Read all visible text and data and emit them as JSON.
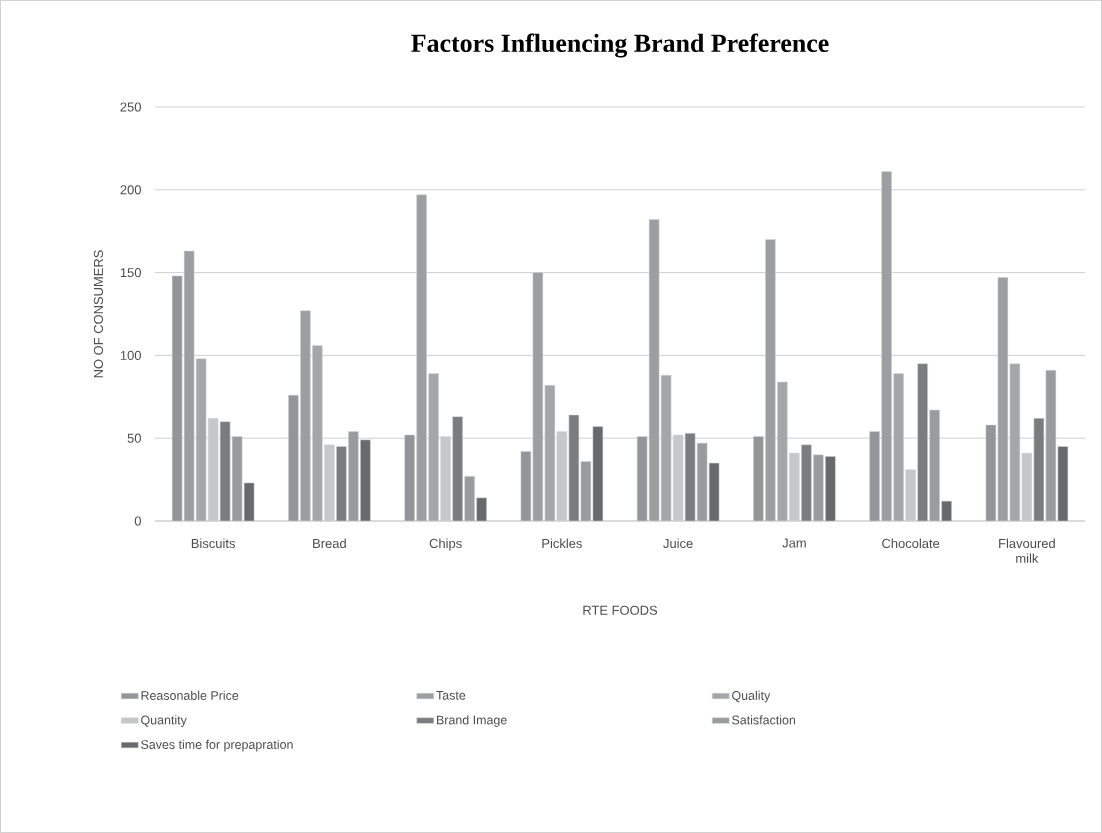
{
  "chart_data": {
    "type": "bar",
    "title": "Factors Influencing Brand Preference",
    "xlabel": "RTE FOODS",
    "ylabel": "NO OF CONSUMERS",
    "categories": [
      "Biscuits",
      "Bread",
      "Chips",
      "Pickles",
      "Juice",
      "Jam",
      "Chocolate",
      "Flavoured milk"
    ],
    "series": [
      {
        "name": "Reasonable Price",
        "color": "#939598",
        "values": [
          148,
          76,
          52,
          42,
          51,
          51,
          54,
          58
        ]
      },
      {
        "name": "Taste",
        "color": "#9d9ea0",
        "values": [
          163,
          127,
          197,
          150,
          182,
          170,
          211,
          147
        ]
      },
      {
        "name": "Quality",
        "color": "#a5a6a8",
        "values": [
          98,
          106,
          89,
          82,
          88,
          84,
          89,
          95
        ]
      },
      {
        "name": "Quantity",
        "color": "#c6c7c8",
        "values": [
          62,
          46,
          51,
          54,
          52,
          41,
          31,
          41
        ]
      },
      {
        "name": "Brand Image",
        "color": "#7b7c7e",
        "values": [
          60,
          45,
          63,
          64,
          53,
          46,
          95,
          62
        ]
      },
      {
        "name": "Satisfaction",
        "color": "#999b9d",
        "values": [
          51,
          54,
          27,
          36,
          47,
          40,
          67,
          91
        ]
      },
      {
        "name": "Saves time for prepapration",
        "color": "#68696b",
        "values": [
          23,
          49,
          14,
          57,
          35,
          39,
          12,
          45
        ]
      }
    ],
    "ylim": [
      0,
      250
    ],
    "yticks": [
      0,
      50,
      100,
      150,
      200,
      250
    ],
    "grid": "y",
    "legend": "bottom"
  }
}
